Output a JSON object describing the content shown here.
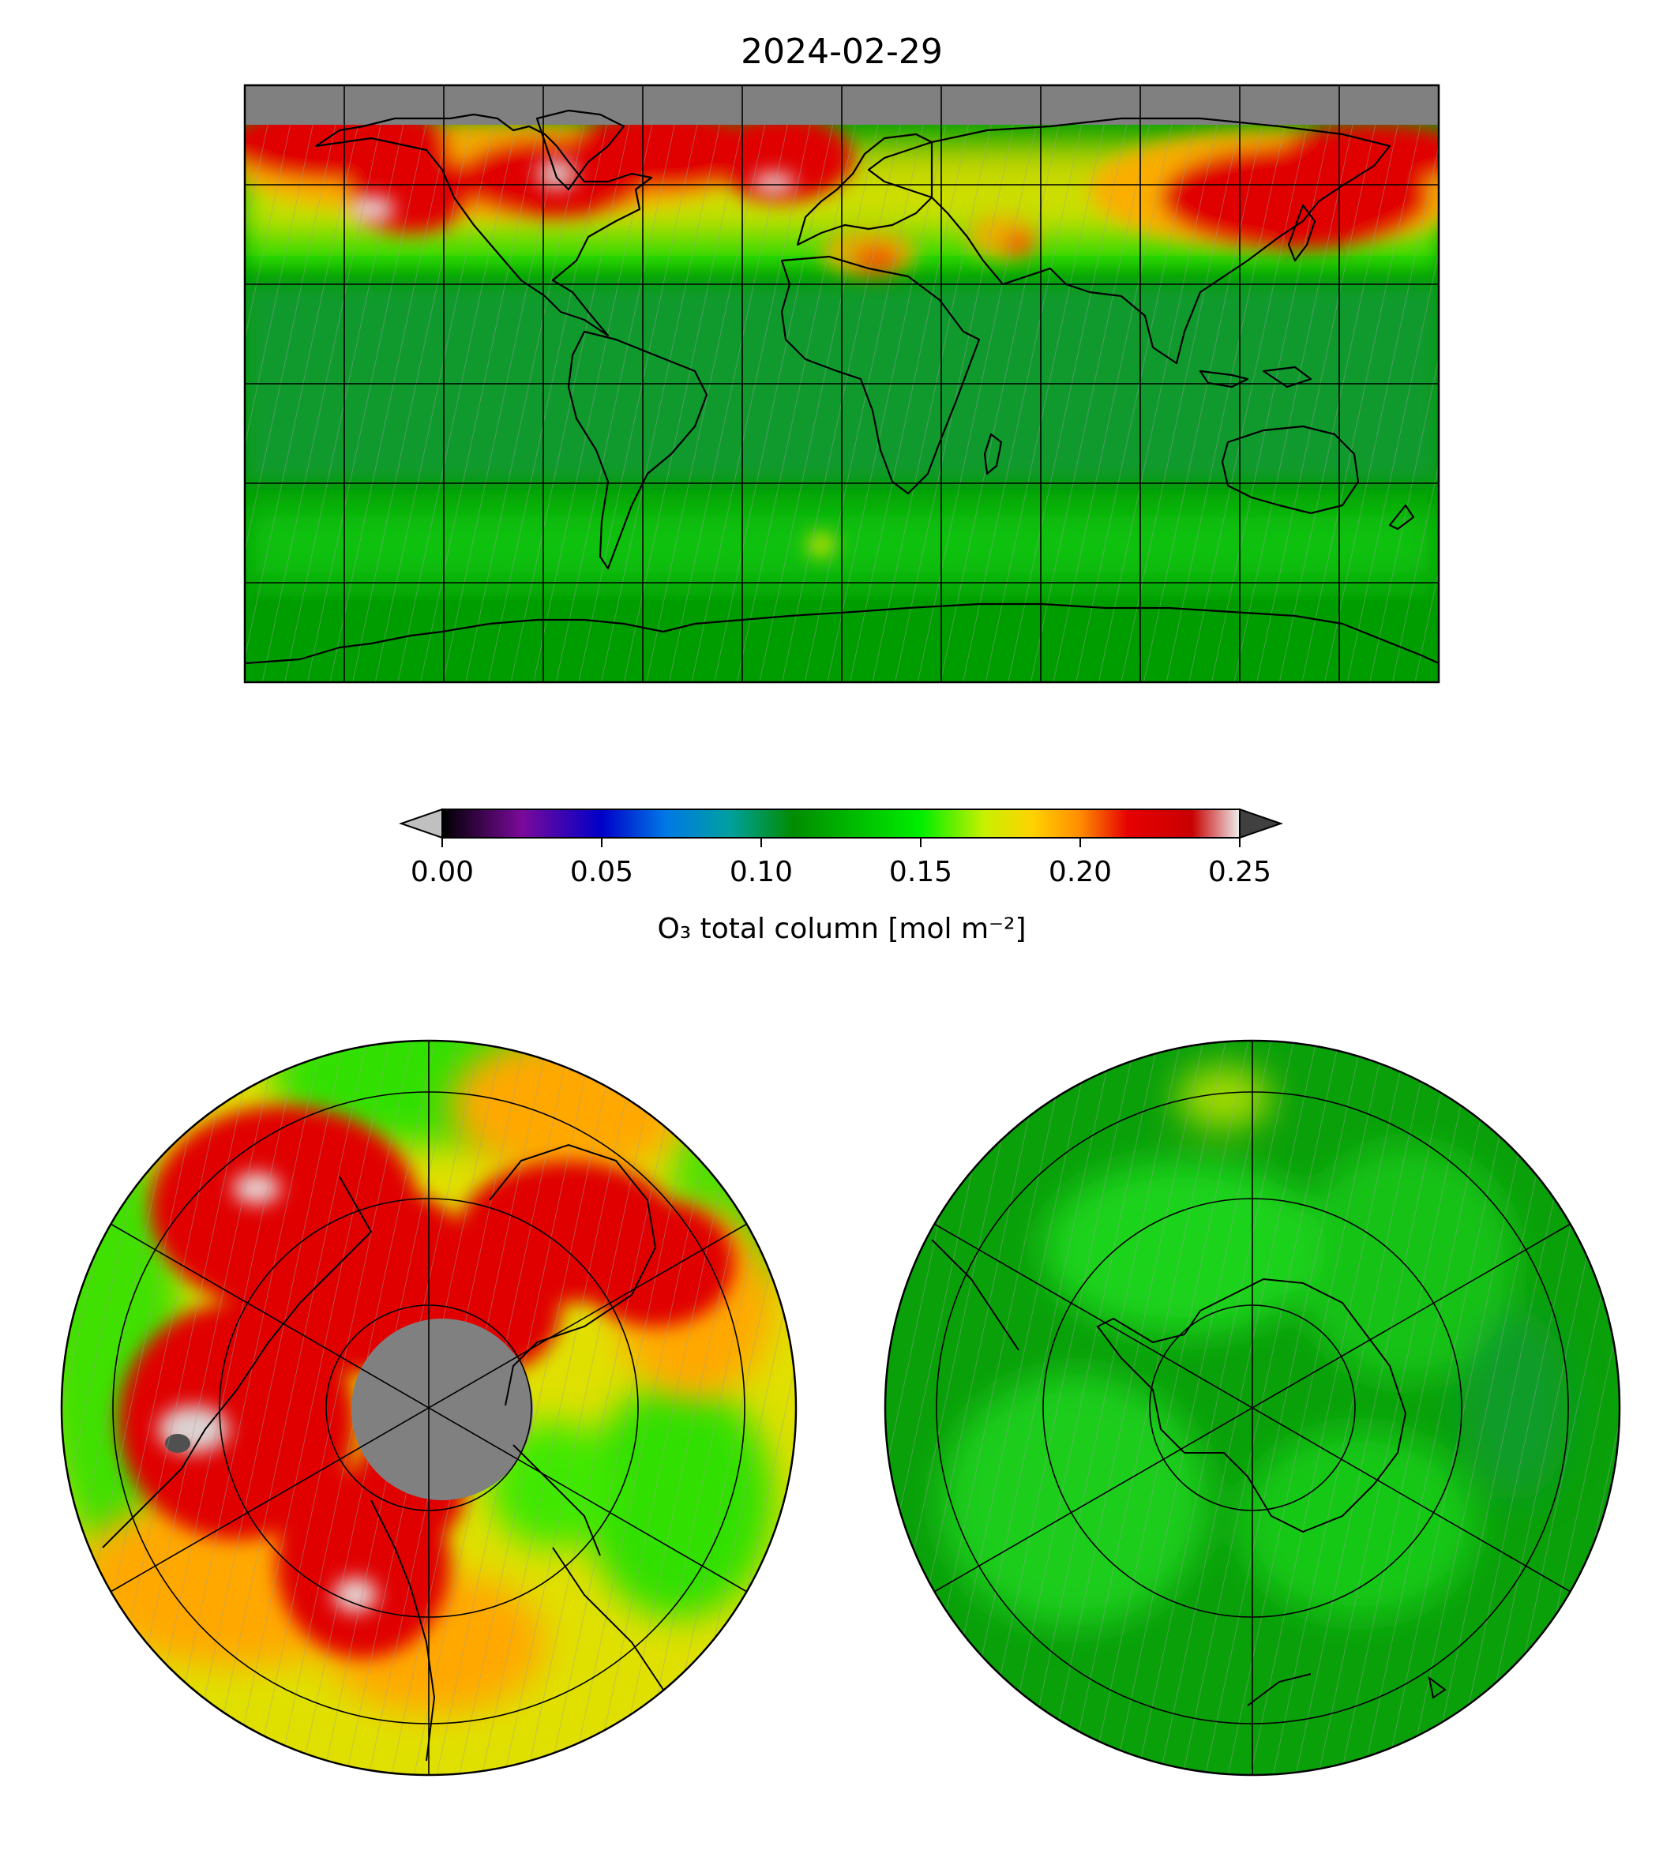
{
  "figure": {
    "title": "2024-02-29"
  },
  "colorbar": {
    "label": "O₃ total column [mol m⁻²]",
    "range": [
      0.0,
      0.25
    ],
    "ticks": [
      "0.00",
      "0.05",
      "0.10",
      "0.15",
      "0.20",
      "0.25"
    ],
    "tick_values": [
      0.0,
      0.05,
      0.1,
      0.15,
      0.2,
      0.25
    ],
    "extend": "both",
    "under_color": "#c0c0c0",
    "over_color": "#404040",
    "colormap_stops": [
      {
        "value": 0.0,
        "color": "#000000"
      },
      {
        "value": 0.025,
        "color": "#7a0a9a"
      },
      {
        "value": 0.05,
        "color": "#0000c8"
      },
      {
        "value": 0.07,
        "color": "#0078e6"
      },
      {
        "value": 0.09,
        "color": "#00a0a0"
      },
      {
        "value": 0.11,
        "color": "#008c00"
      },
      {
        "value": 0.15,
        "color": "#00ee00"
      },
      {
        "value": 0.17,
        "color": "#c8f000"
      },
      {
        "value": 0.185,
        "color": "#ffd200"
      },
      {
        "value": 0.2,
        "color": "#ff8c00"
      },
      {
        "value": 0.215,
        "color": "#e60000"
      },
      {
        "value": 0.235,
        "color": "#c80000"
      },
      {
        "value": 0.25,
        "color": "#eeeeee"
      }
    ]
  },
  "panels": {
    "global": {
      "projection": "equirectangular",
      "lat_range": [
        -90,
        90
      ],
      "lon_range": [
        -180,
        180
      ],
      "gridlines": true,
      "missing_color": "#808080"
    },
    "north_polar": {
      "projection": "north-polar-stereographic",
      "gridlines": true,
      "missing_color": "#808080"
    },
    "south_polar": {
      "projection": "south-polar-stereographic",
      "gridlines": true
    }
  },
  "colors": {
    "green_dark": "#00a000",
    "green_bright": "#20d820",
    "yellow": "#e8e800",
    "orange": "#ffa800",
    "red": "#e00000",
    "gray": "#808080",
    "white_spot": "#e0e0e0"
  }
}
